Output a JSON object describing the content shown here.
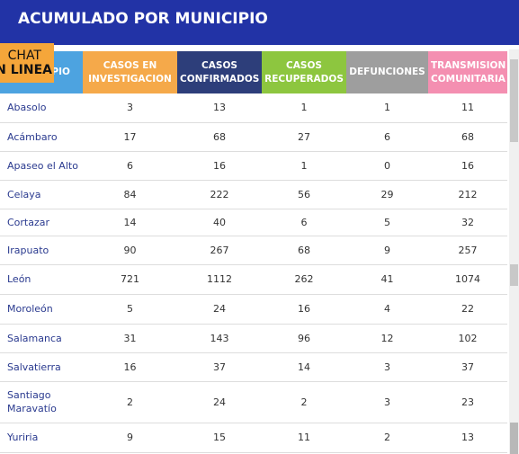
{
  "header": {
    "title": "ACUMULADO POR MUNICIPIO"
  },
  "chat_badge": {
    "lines": [
      "CHAT",
      "EN LINEA"
    ]
  },
  "table": {
    "columns": [
      "MUNICIPIO",
      "CASOS EN INVESTIGACION",
      "CASOS CONFIRMADOS",
      "CASOS RECUPERADOS",
      "DEFUNCIONES",
      "TRANSMISION COMUNITARIA"
    ],
    "rows": [
      [
        "Abasolo",
        "3",
        "13",
        "1",
        "1",
        "11"
      ],
      [
        "Acámbaro",
        "17",
        "68",
        "27",
        "6",
        "68"
      ],
      [
        "Apaseo el Alto",
        "6",
        "16",
        "1",
        "0",
        "16"
      ],
      [
        "Celaya",
        "84",
        "222",
        "56",
        "29",
        "212"
      ],
      [
        "Cortazar",
        "14",
        "40",
        "6",
        "5",
        "32"
      ],
      [
        "Irapuato",
        "90",
        "267",
        "68",
        "9",
        "257"
      ],
      [
        "León",
        "721",
        "1112",
        "262",
        "41",
        "1074"
      ],
      [
        "Moroleón",
        "5",
        "24",
        "16",
        "4",
        "22"
      ],
      [
        "Salamanca",
        "31",
        "143",
        "96",
        "12",
        "102"
      ],
      [
        "Salvatierra",
        "16",
        "37",
        "14",
        "3",
        "37"
      ],
      [
        "Santiago Maravatío",
        "2",
        "24",
        "2",
        "3",
        "23"
      ],
      [
        "Yuriria",
        "9",
        "15",
        "11",
        "2",
        "13"
      ]
    ]
  }
}
